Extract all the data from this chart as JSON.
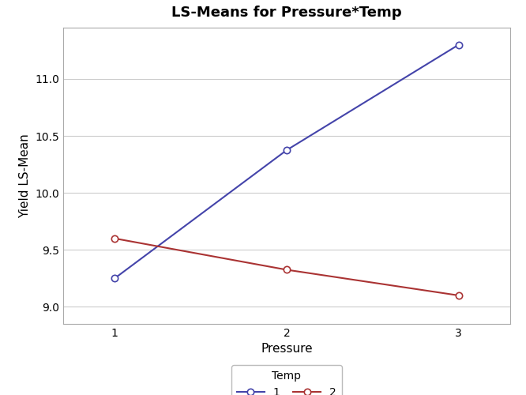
{
  "title": "LS-Means for Pressure*Temp",
  "xlabel": "Pressure",
  "ylabel": "Yield LS-Mean",
  "pressure_values": [
    1,
    2,
    3
  ],
  "temp1_values": [
    9.25,
    10.375,
    11.3
  ],
  "temp2_values": [
    9.6,
    9.325,
    9.1
  ],
  "temp1_color": "#4444AA",
  "temp2_color": "#AA3333",
  "ylim": [
    8.85,
    11.45
  ],
  "xlim": [
    0.7,
    3.3
  ],
  "yticks": [
    9.0,
    9.5,
    10.0,
    10.5,
    11.0
  ],
  "xticks": [
    1,
    2,
    3
  ],
  "legend_title": "Temp",
  "legend_labels": [
    "1",
    "2"
  ],
  "marker": "o",
  "marker_size": 6,
  "linewidth": 1.5,
  "title_fontsize": 13,
  "axis_label_fontsize": 11,
  "tick_fontsize": 10,
  "legend_fontsize": 10,
  "bg_color": "#ffffff",
  "plot_bg_color": "#ffffff",
  "grid_color": "#cccccc"
}
